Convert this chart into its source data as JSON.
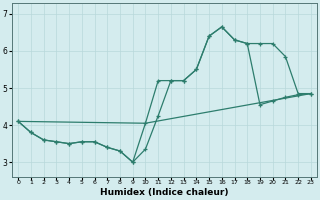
{
  "xlabel": "Humidex (Indice chaleur)",
  "ylabel": "",
  "bg_color": "#d4ecee",
  "line_color": "#2d7d6d",
  "grid_color": "#b8d8db",
  "xlim": [
    -0.5,
    23.5
  ],
  "ylim": [
    2.6,
    7.3
  ],
  "xticks": [
    0,
    1,
    2,
    3,
    4,
    5,
    6,
    7,
    8,
    9,
    10,
    11,
    12,
    13,
    14,
    15,
    16,
    17,
    18,
    19,
    20,
    21,
    22,
    23
  ],
  "yticks": [
    3,
    4,
    5,
    6,
    7
  ],
  "line1_x": [
    0,
    1,
    2,
    3,
    4,
    5,
    6,
    7,
    8,
    9,
    10,
    11,
    12,
    13,
    14,
    15,
    16,
    17,
    18,
    19,
    20,
    21,
    22,
    23
  ],
  "line1_y": [
    4.1,
    3.8,
    3.6,
    3.55,
    3.5,
    3.55,
    3.55,
    3.4,
    3.3,
    3.0,
    3.35,
    4.25,
    5.2,
    5.2,
    5.5,
    6.4,
    6.65,
    6.3,
    6.2,
    6.2,
    6.2,
    5.85,
    4.85,
    4.85
  ],
  "line2_x": [
    0,
    1,
    2,
    3,
    4,
    5,
    6,
    7,
    8,
    9,
    10,
    11,
    12,
    13,
    14,
    15,
    16,
    17,
    18,
    19,
    20,
    21,
    22,
    23
  ],
  "line2_y": [
    4.1,
    3.8,
    3.6,
    3.55,
    3.5,
    3.55,
    3.55,
    3.4,
    3.3,
    3.0,
    4.05,
    5.2,
    5.2,
    5.2,
    5.5,
    6.4,
    6.65,
    6.3,
    6.2,
    4.55,
    4.65,
    4.75,
    4.82,
    4.85
  ],
  "line3_x": [
    0,
    10,
    23
  ],
  "line3_y": [
    4.1,
    4.05,
    4.85
  ]
}
